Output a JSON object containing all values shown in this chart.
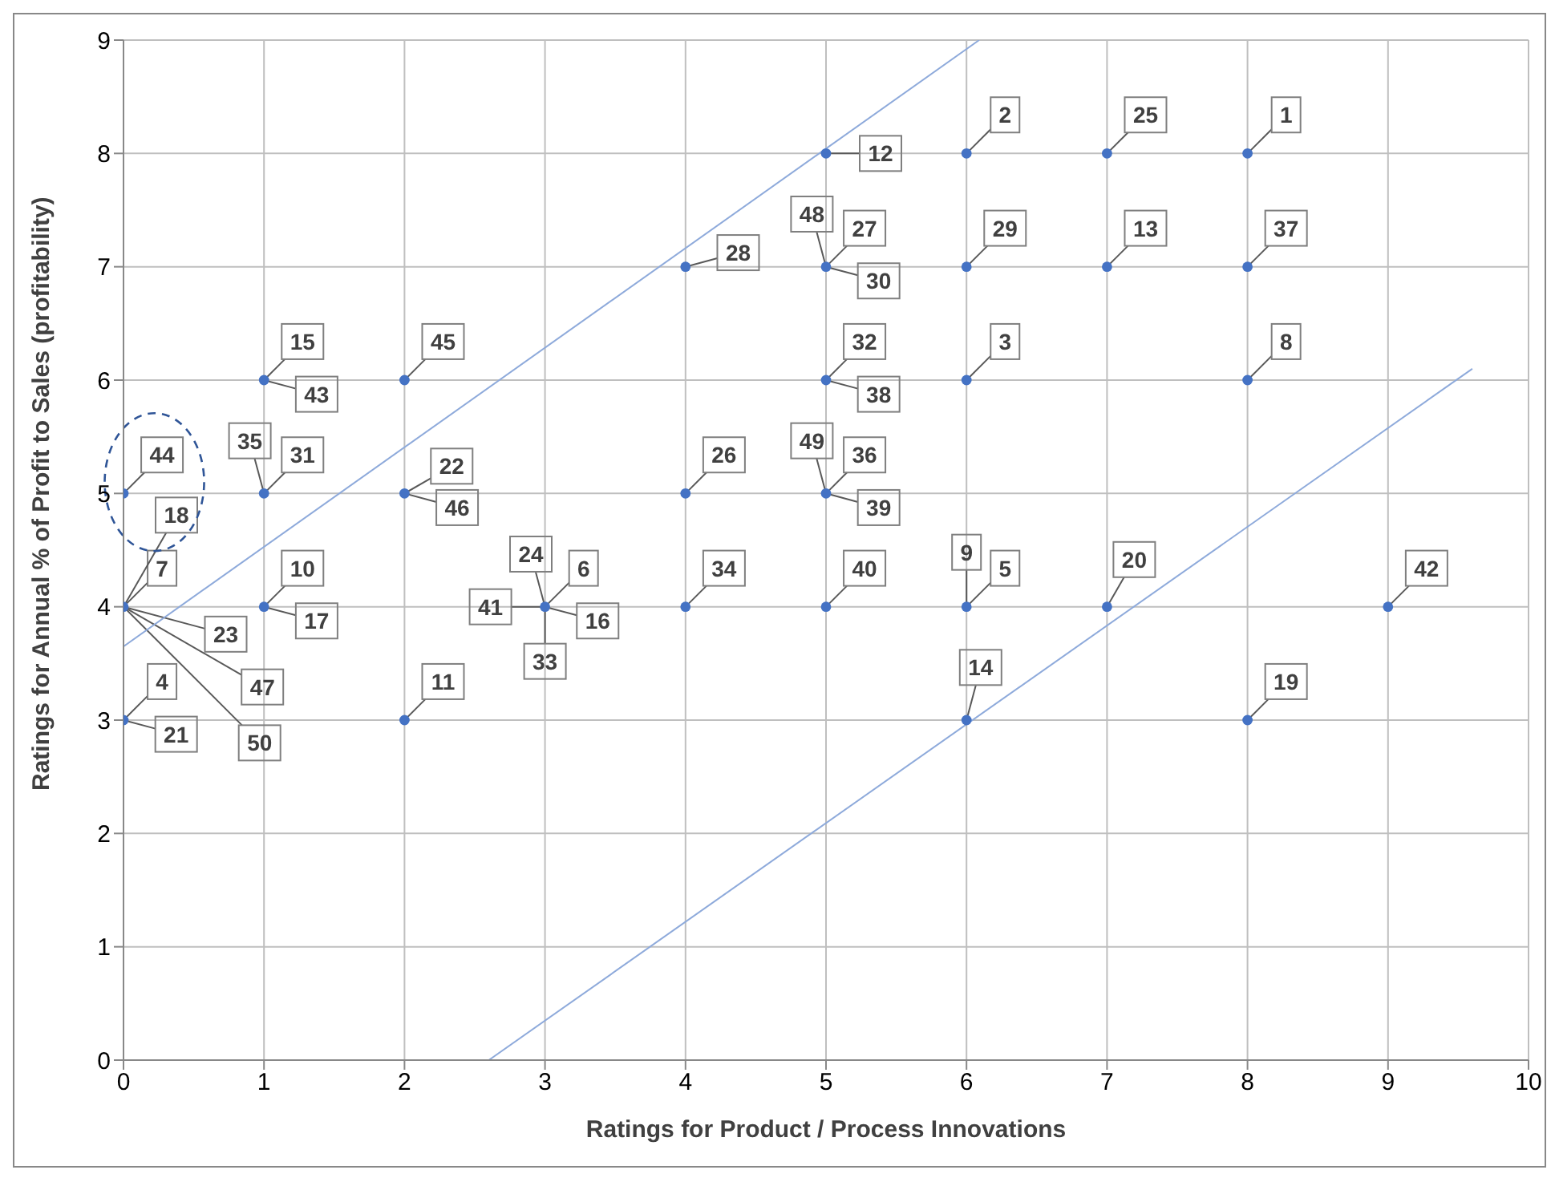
{
  "chart_data": {
    "type": "scatter",
    "xlabel": "Ratings for Product / Process Innovations",
    "ylabel": "Ratings for Annual % of Profit to Sales (profitability)",
    "xlim": [
      0,
      10
    ],
    "ylim": [
      0,
      9
    ],
    "xticks": [
      0,
      1,
      2,
      3,
      4,
      5,
      6,
      7,
      8,
      9,
      10
    ],
    "yticks": [
      0,
      1,
      2,
      3,
      4,
      5,
      6,
      7,
      8,
      9
    ],
    "grid": true,
    "series": [
      {
        "color": "#4472c4",
        "marker": "circle",
        "x": [
          8,
          6,
          6,
          0,
          6,
          3,
          0,
          8,
          1,
          2,
          5,
          7,
          6,
          1,
          8,
          7,
          2,
          7,
          4,
          5,
          4,
          6,
          1,
          5,
          4,
          5,
          8,
          5,
          9,
          0,
          2
        ],
        "values": [
          8,
          8,
          6,
          3,
          4,
          4,
          4,
          6,
          4,
          3,
          8,
          7,
          3,
          6,
          3,
          4,
          5,
          8,
          5,
          7,
          7,
          7,
          5,
          6,
          4,
          5,
          7,
          4,
          4,
          5,
          6
        ]
      },
      {
        "type": "line",
        "color": "#8eaadb",
        "marker": "none",
        "line_style": "solid",
        "x": [
          0,
          6.09
        ],
        "values": [
          3.65,
          9
        ]
      },
      {
        "type": "line",
        "color": "#8eaadb",
        "marker": "none",
        "line_style": "solid",
        "x": [
          2.6,
          9.6
        ],
        "values": [
          0,
          6.1
        ]
      }
    ],
    "annotations": [
      {
        "text": "1",
        "x": 8,
        "y": 8
      },
      {
        "text": "2",
        "x": 6,
        "y": 8
      },
      {
        "text": "3",
        "x": 6,
        "y": 6
      },
      {
        "text": "4",
        "x": 0,
        "y": 3
      },
      {
        "text": "5",
        "x": 6,
        "y": 4
      },
      {
        "text": "6",
        "x": 3,
        "y": 4
      },
      {
        "text": "7",
        "x": 0,
        "y": 4
      },
      {
        "text": "8",
        "x": 8,
        "y": 6
      },
      {
        "text": "9",
        "x": 6,
        "y": 4
      },
      {
        "text": "10",
        "x": 1,
        "y": 4
      },
      {
        "text": "11",
        "x": 2,
        "y": 3
      },
      {
        "text": "12",
        "x": 5,
        "y": 8
      },
      {
        "text": "13",
        "x": 7,
        "y": 7
      },
      {
        "text": "14",
        "x": 6,
        "y": 3
      },
      {
        "text": "15",
        "x": 1,
        "y": 6
      },
      {
        "text": "16",
        "x": 3,
        "y": 4
      },
      {
        "text": "17",
        "x": 1,
        "y": 4
      },
      {
        "text": "18",
        "x": 0,
        "y": 4
      },
      {
        "text": "19",
        "x": 8,
        "y": 3
      },
      {
        "text": "20",
        "x": 7,
        "y": 4
      },
      {
        "text": "21",
        "x": 0,
        "y": 3
      },
      {
        "text": "22",
        "x": 2,
        "y": 5
      },
      {
        "text": "23",
        "x": 0,
        "y": 4
      },
      {
        "text": "24",
        "x": 3,
        "y": 4
      },
      {
        "text": "25",
        "x": 7,
        "y": 8
      },
      {
        "text": "26",
        "x": 4,
        "y": 5
      },
      {
        "text": "27",
        "x": 5,
        "y": 7
      },
      {
        "text": "28",
        "x": 4,
        "y": 7
      },
      {
        "text": "29",
        "x": 6,
        "y": 7
      },
      {
        "text": "30",
        "x": 5,
        "y": 7
      },
      {
        "text": "31",
        "x": 1,
        "y": 5
      },
      {
        "text": "32",
        "x": 5,
        "y": 6
      },
      {
        "text": "33",
        "x": 3,
        "y": 4
      },
      {
        "text": "34",
        "x": 4,
        "y": 4
      },
      {
        "text": "35",
        "x": 1,
        "y": 5
      },
      {
        "text": "36",
        "x": 5,
        "y": 5
      },
      {
        "text": "37",
        "x": 8,
        "y": 7
      },
      {
        "text": "38",
        "x": 5,
        "y": 6
      },
      {
        "text": "39",
        "x": 5,
        "y": 5
      },
      {
        "text": "40",
        "x": 5,
        "y": 4
      },
      {
        "text": "41",
        "x": 3,
        "y": 4
      },
      {
        "text": "42",
        "x": 9,
        "y": 4
      },
      {
        "text": "43",
        "x": 1,
        "y": 6
      },
      {
        "text": "44",
        "x": 0,
        "y": 5
      },
      {
        "text": "45",
        "x": 2,
        "y": 6
      },
      {
        "text": "46",
        "x": 2,
        "y": 5
      },
      {
        "text": "47",
        "x": 0,
        "y": 4
      },
      {
        "text": "48",
        "x": 5,
        "y": 7
      },
      {
        "text": "49",
        "x": 5,
        "y": 5
      },
      {
        "text": "50",
        "x": 0,
        "y": 4
      }
    ]
  }
}
